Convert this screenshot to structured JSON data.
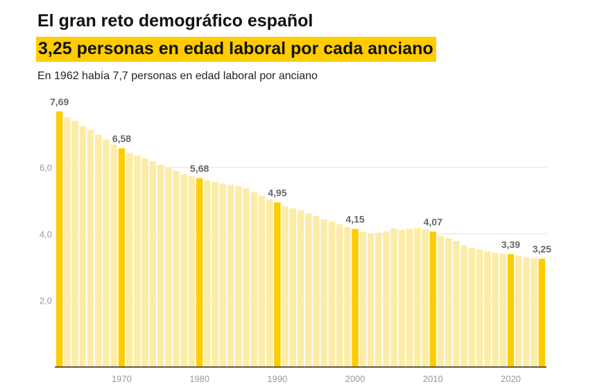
{
  "title": "El gran reto demográfico español",
  "subtitle": "3,25 personas en edad laboral por cada anciano",
  "description": "En 1962 había 7,7 personas en edad laboral por anciano",
  "colors": {
    "highlight": "#FFCC00",
    "bar": "#FDECA6",
    "gridline": "#e2e2e2"
  },
  "chart_data": {
    "type": "bar",
    "title": "El gran reto demográfico español",
    "x": [
      1962,
      1963,
      1964,
      1965,
      1966,
      1967,
      1968,
      1969,
      1970,
      1971,
      1972,
      1973,
      1974,
      1975,
      1976,
      1977,
      1978,
      1979,
      1980,
      1981,
      1982,
      1983,
      1984,
      1985,
      1986,
      1987,
      1988,
      1989,
      1990,
      1991,
      1992,
      1993,
      1994,
      1995,
      1996,
      1997,
      1998,
      1999,
      2000,
      2001,
      2002,
      2003,
      2004,
      2005,
      2006,
      2007,
      2008,
      2009,
      2010,
      2011,
      2012,
      2013,
      2014,
      2015,
      2016,
      2017,
      2018,
      2019,
      2020,
      2021,
      2022,
      2023,
      2024
    ],
    "values": [
      7.69,
      7.51,
      7.41,
      7.24,
      7.13,
      6.99,
      6.84,
      6.69,
      6.58,
      6.44,
      6.36,
      6.28,
      6.19,
      6.09,
      5.98,
      5.9,
      5.8,
      5.73,
      5.68,
      5.61,
      5.57,
      5.52,
      5.48,
      5.44,
      5.37,
      5.25,
      5.15,
      5.04,
      4.95,
      4.83,
      4.77,
      4.71,
      4.62,
      4.54,
      4.44,
      4.37,
      4.29,
      4.21,
      4.15,
      4.06,
      4.02,
      4.04,
      4.08,
      4.16,
      4.12,
      4.16,
      4.18,
      4.14,
      4.07,
      3.95,
      3.87,
      3.79,
      3.66,
      3.58,
      3.53,
      3.47,
      3.43,
      3.41,
      3.39,
      3.35,
      3.29,
      3.27,
      3.25
    ],
    "highlighted": [
      1962,
      1970,
      1980,
      1990,
      2000,
      2010,
      2020,
      2024
    ],
    "data_labels": [
      {
        "x": 1962,
        "label": "7,69"
      },
      {
        "x": 1970,
        "label": "6,58"
      },
      {
        "x": 1980,
        "label": "5,68"
      },
      {
        "x": 1990,
        "label": "4,95"
      },
      {
        "x": 2000,
        "label": "4,15"
      },
      {
        "x": 2010,
        "label": "4,07"
      },
      {
        "x": 2020,
        "label": "3,39"
      },
      {
        "x": 2024,
        "label": "3,25"
      }
    ],
    "y_ticks": [
      {
        "v": 2,
        "label": "2,0"
      },
      {
        "v": 4,
        "label": "4,0"
      },
      {
        "v": 6,
        "label": "6,0"
      }
    ],
    "x_ticks": [
      {
        "v": 1970,
        "label": "1970"
      },
      {
        "v": 1980,
        "label": "1980"
      },
      {
        "v": 1990,
        "label": "1990"
      },
      {
        "v": 2000,
        "label": "2000"
      },
      {
        "v": 2010,
        "label": "2010"
      },
      {
        "v": 2020,
        "label": "2020"
      }
    ],
    "ylim": [
      0,
      8
    ],
    "grid": true,
    "xlabel": "",
    "ylabel": ""
  }
}
